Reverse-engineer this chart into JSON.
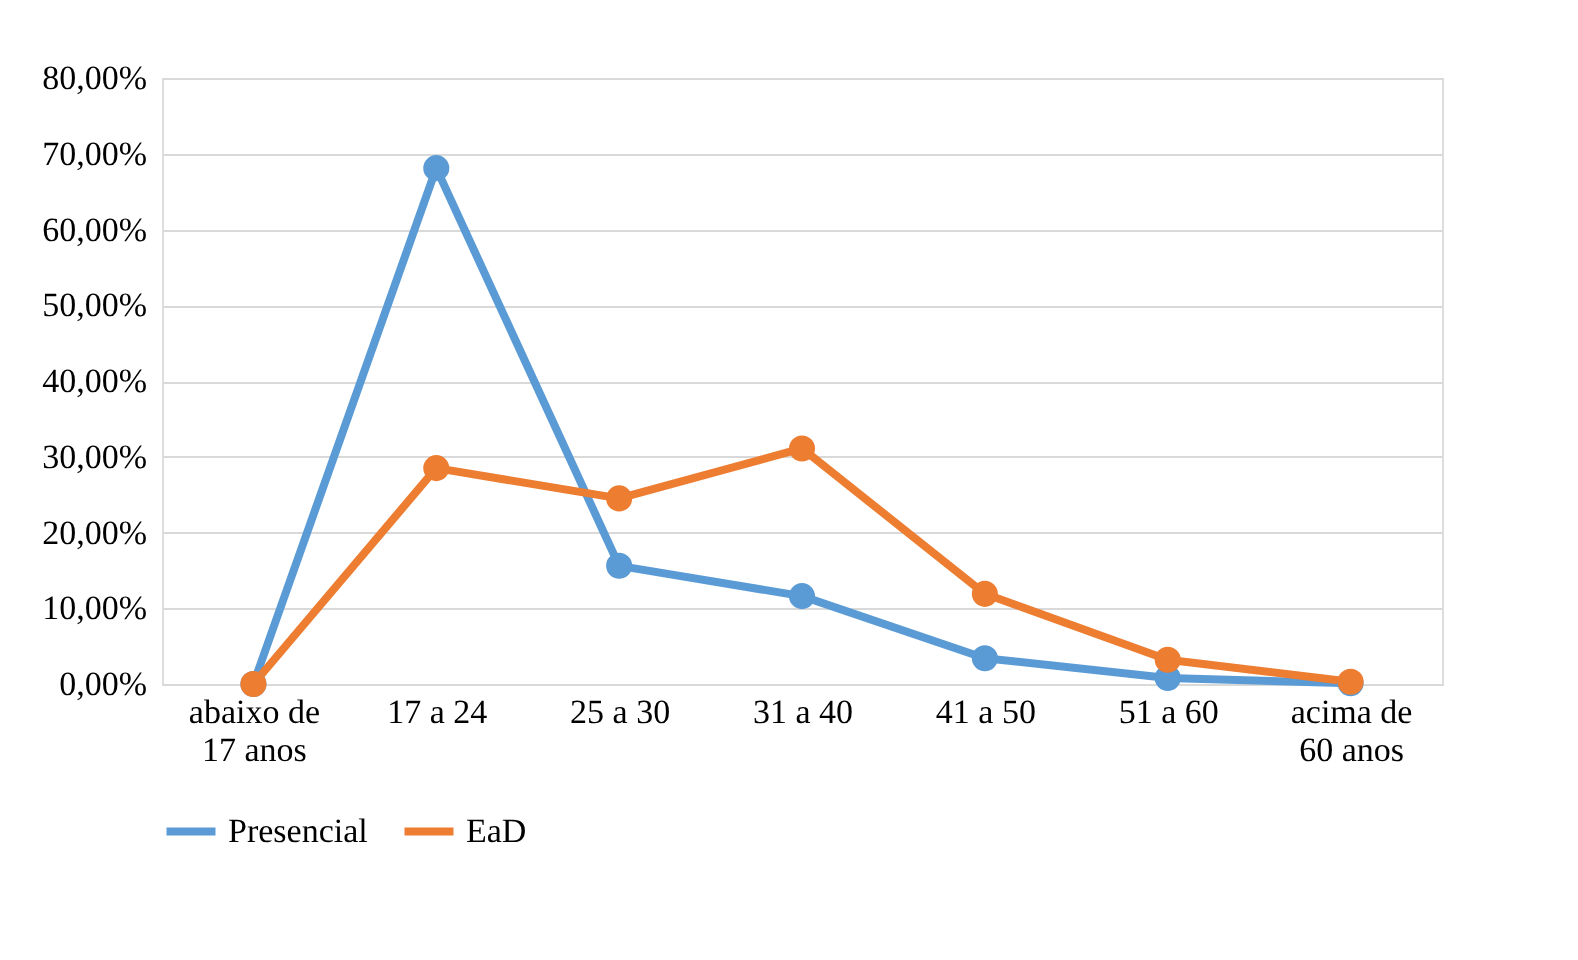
{
  "chart_data": {
    "type": "line",
    "categories": [
      "abaixo de 17 anos",
      "17 a 24",
      "25 a 30",
      "31 a 40",
      "41 a 50",
      "51 a 60",
      "acima de 60 anos"
    ],
    "series": [
      {
        "name": "Presencial",
        "color": "#5b9bd5",
        "values": [
          0,
          68.1,
          15.6,
          11.6,
          3.4,
          0.8,
          0.1
        ]
      },
      {
        "name": "EaD",
        "color": "#ed7d31",
        "values": [
          0,
          28.5,
          24.5,
          31.1,
          11.9,
          3.2,
          0.3
        ]
      }
    ],
    "ylim": [
      0,
      80
    ],
    "yticks": [
      {
        "value": 0,
        "label": "0,00%"
      },
      {
        "value": 10,
        "label": "10,00%"
      },
      {
        "value": 20,
        "label": "20,00%"
      },
      {
        "value": 30,
        "label": "30,00%"
      },
      {
        "value": 40,
        "label": "40,00%"
      },
      {
        "value": 50,
        "label": "50,00%"
      },
      {
        "value": 60,
        "label": "60,00%"
      },
      {
        "value": 70,
        "label": "70,00%"
      },
      {
        "value": 80,
        "label": "80,00%"
      }
    ],
    "grid": "y",
    "legend": "bottom",
    "marker": "circle",
    "line_style": "solid"
  }
}
